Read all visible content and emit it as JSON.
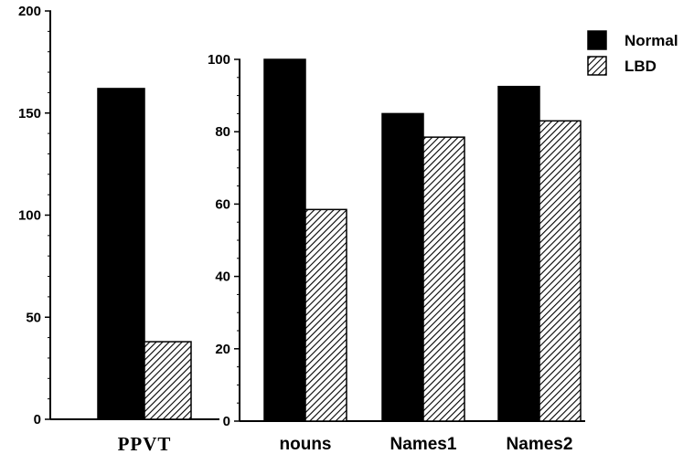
{
  "colors": {
    "normal": "#000000",
    "lbd_hatch": "#000000",
    "background": "#ffffff"
  },
  "legend": {
    "position": "top-right",
    "items": [
      {
        "label": "Normal",
        "style": "solid"
      },
      {
        "label": "LBD",
        "style": "hatched"
      }
    ]
  },
  "chart_data": [
    {
      "type": "bar",
      "title": "",
      "xlabel": "",
      "ylabel": "",
      "ylim": [
        0,
        200
      ],
      "yticks": [
        0,
        50,
        100,
        150,
        200
      ],
      "categories": [
        "PPVT"
      ],
      "series": [
        {
          "name": "Normal",
          "values": [
            162
          ]
        },
        {
          "name": "LBD",
          "values": [
            38
          ]
        }
      ]
    },
    {
      "type": "bar",
      "title": "",
      "xlabel": "",
      "ylabel": "",
      "ylim": [
        0,
        100
      ],
      "yticks": [
        0,
        20,
        40,
        60,
        80,
        100
      ],
      "categories": [
        "nouns",
        "Names1",
        "Names2"
      ],
      "series": [
        {
          "name": "Normal",
          "values": [
            100,
            85,
            92.5
          ]
        },
        {
          "name": "LBD",
          "values": [
            58.5,
            78.5,
            83
          ]
        }
      ]
    }
  ]
}
